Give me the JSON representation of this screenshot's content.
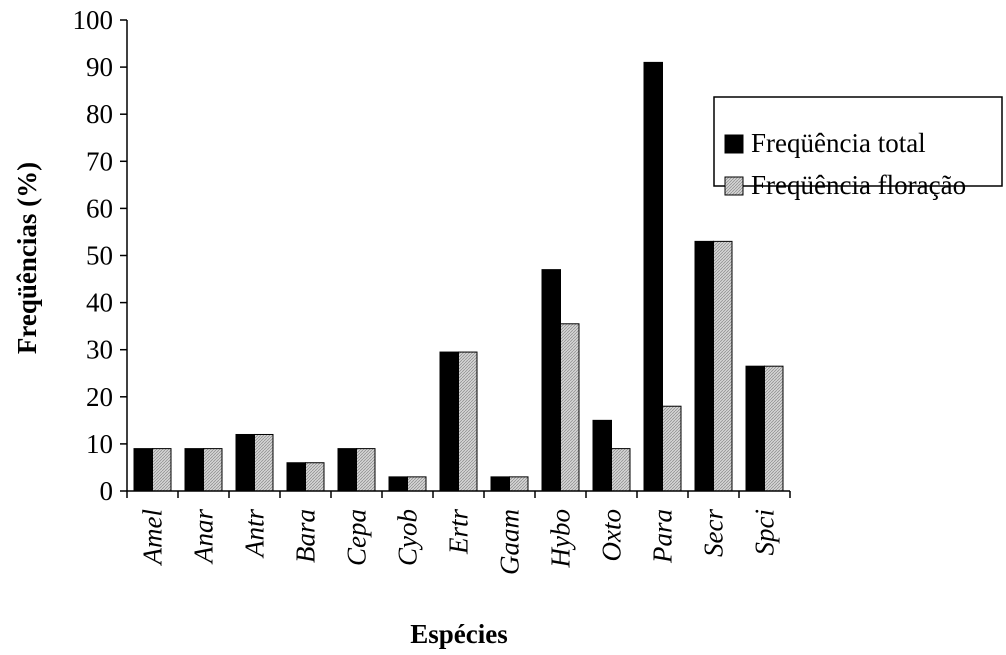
{
  "chart_data": {
    "type": "bar",
    "title": "",
    "xlabel": "Espécies",
    "ylabel": "Freqüências (%)",
    "ylim": [
      0,
      100
    ],
    "yticks": [
      0,
      10,
      20,
      30,
      40,
      50,
      60,
      70,
      80,
      90,
      100
    ],
    "grid": false,
    "legend_position": "right",
    "categories": [
      "Amel",
      "Anar",
      "Antr",
      "Bara",
      "Cepa",
      "Cyob",
      "Ertr",
      "Gaam",
      "Hybo",
      "Oxto",
      "Para",
      "Secr",
      "Spci"
    ],
    "series": [
      {
        "name": "Freqüência total",
        "color": "#000000",
        "pattern": "solid",
        "values": [
          9,
          9,
          12,
          6,
          9,
          3,
          29.5,
          3,
          47,
          15,
          91,
          53,
          26.5
        ]
      },
      {
        "name": "Freqüência floração",
        "color": "#c0c0c0",
        "pattern": "hatched",
        "values": [
          9,
          9,
          12,
          6,
          9,
          3,
          29.5,
          3,
          35.5,
          9,
          18,
          53,
          26.5
        ]
      }
    ]
  }
}
